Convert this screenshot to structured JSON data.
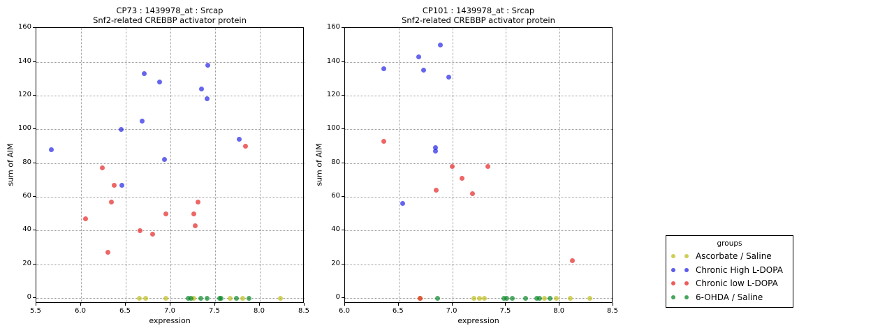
{
  "legend": {
    "title": "groups"
  },
  "groups": [
    {
      "label": "Ascorbate / Saline",
      "slug": "ascorbate-saline",
      "color": "#bebe1e"
    },
    {
      "label": "Chronic High L-DOPA",
      "slug": "chronic-high-ldopa",
      "color": "#2424e6"
    },
    {
      "label": "Chronic low L-DOPA",
      "slug": "chronic-low-ldopa",
      "color": "#e62525"
    },
    {
      "label": "6-OHDA / Saline",
      "slug": "6ohda-saline",
      "color": "#0a8728"
    }
  ],
  "chart_data": [
    {
      "type": "scatter",
      "title": "CP73 : 1439978_at : Srcap",
      "subtitle": "Snf2-related CREBBP activator protein",
      "xlabel": "expression",
      "ylabel": "sum of AIM",
      "xlim": [
        5.5,
        8.5
      ],
      "ylim": [
        0,
        160
      ],
      "grid": "dotted",
      "legend_position": "outside-right",
      "xtick_values": [
        5.5,
        6.0,
        6.5,
        7.0,
        7.5,
        8.0,
        8.5
      ],
      "xtick_labels": [
        "5.5",
        "6.0",
        "6.5",
        "7.0",
        "7.5",
        "8.0",
        "8.5"
      ],
      "ytick_values": [
        0,
        20,
        40,
        60,
        80,
        100,
        120,
        140,
        160
      ],
      "ytick_labels": [
        "0",
        "20",
        "40",
        "60",
        "80",
        "100",
        "120",
        "140",
        "160"
      ],
      "series": [
        {
          "group": "Ascorbate / Saline",
          "points": [
            [
              6.65,
              0
            ],
            [
              6.72,
              0
            ],
            [
              6.95,
              0
            ],
            [
              7.26,
              0
            ],
            [
              7.67,
              0
            ],
            [
              7.81,
              0
            ],
            [
              8.23,
              0
            ]
          ]
        },
        {
          "group": "Chronic High L-DOPA",
          "points": [
            [
              5.67,
              88
            ],
            [
              6.45,
              100
            ],
            [
              6.46,
              67
            ],
            [
              6.68,
              105
            ],
            [
              6.71,
              133
            ],
            [
              6.88,
              128
            ],
            [
              6.93,
              82
            ],
            [
              7.35,
              124
            ],
            [
              7.41,
              118
            ],
            [
              7.42,
              138
            ],
            [
              7.77,
              94
            ]
          ]
        },
        {
          "group": "Chronic low L-DOPA",
          "points": [
            [
              6.05,
              47
            ],
            [
              6.24,
              77
            ],
            [
              6.3,
              27
            ],
            [
              6.34,
              57
            ],
            [
              6.37,
              67
            ],
            [
              6.66,
              40
            ],
            [
              6.8,
              38
            ],
            [
              6.95,
              50
            ],
            [
              7.26,
              50
            ],
            [
              7.28,
              43
            ],
            [
              7.31,
              57
            ],
            [
              7.84,
              90
            ]
          ]
        },
        {
          "group": "6-OHDA / Saline",
          "points": [
            [
              7.2,
              0
            ],
            [
              7.23,
              0
            ],
            [
              7.34,
              0
            ],
            [
              7.41,
              0
            ],
            [
              7.55,
              0
            ],
            [
              7.57,
              0
            ],
            [
              7.74,
              0
            ],
            [
              7.88,
              0
            ]
          ]
        }
      ]
    },
    {
      "type": "scatter",
      "title": "CP101 : 1439978_at : Srcap",
      "subtitle": "Snf2-related CREBBP activator protein",
      "xlabel": "expression",
      "ylabel": "sum of AIM",
      "xlim": [
        6.0,
        8.5
      ],
      "ylim": [
        0,
        160
      ],
      "grid": "dotted",
      "legend_position": "outside-right",
      "xtick_values": [
        6.0,
        6.5,
        7.0,
        7.5,
        8.0,
        8.5
      ],
      "xtick_labels": [
        "6.0",
        "6.5",
        "7.0",
        "7.5",
        "8.0",
        "8.5"
      ],
      "ytick_values": [
        0,
        20,
        40,
        60,
        80,
        100,
        120,
        140,
        160
      ],
      "ytick_labels": [
        "0",
        "20",
        "40",
        "60",
        "80",
        "100",
        "120",
        "140",
        "160"
      ],
      "series": [
        {
          "group": "Ascorbate / Saline",
          "points": [
            [
              6.7,
              0
            ],
            [
              7.2,
              0
            ],
            [
              7.25,
              0
            ],
            [
              7.3,
              0
            ],
            [
              7.86,
              0
            ],
            [
              7.97,
              0
            ],
            [
              8.1,
              0
            ],
            [
              8.28,
              0
            ]
          ]
        },
        {
          "group": "Chronic High L-DOPA",
          "points": [
            [
              6.36,
              136
            ],
            [
              6.54,
              56
            ],
            [
              6.69,
              143
            ],
            [
              6.73,
              135
            ],
            [
              6.84,
              89
            ],
            [
              6.84,
              87
            ],
            [
              6.89,
              150
            ],
            [
              6.97,
              131
            ]
          ]
        },
        {
          "group": "Chronic low L-DOPA",
          "points": [
            [
              6.36,
              93
            ],
            [
              6.7,
              0
            ],
            [
              6.85,
              64
            ],
            [
              7.0,
              78
            ],
            [
              7.09,
              71
            ],
            [
              7.19,
              62
            ],
            [
              7.33,
              78
            ],
            [
              8.12,
              22
            ]
          ]
        },
        {
          "group": "6-OHDA / Saline",
          "points": [
            [
              6.86,
              0
            ],
            [
              7.48,
              0
            ],
            [
              7.51,
              0
            ],
            [
              7.56,
              0
            ],
            [
              7.68,
              0
            ],
            [
              7.79,
              0
            ],
            [
              7.81,
              0
            ],
            [
              7.91,
              0
            ]
          ]
        }
      ]
    }
  ]
}
